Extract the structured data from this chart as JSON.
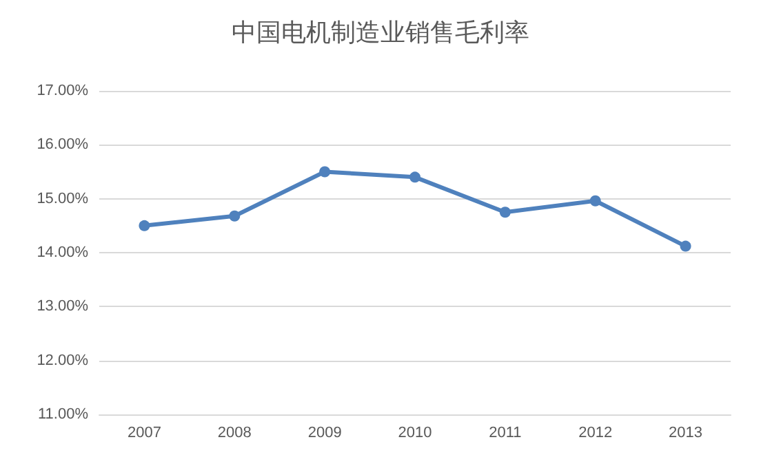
{
  "chart_data": {
    "type": "line",
    "title": "中国电机制造业销售毛利率",
    "categories": [
      "2007",
      "2008",
      "2009",
      "2010",
      "2011",
      "2012",
      "2013"
    ],
    "series": [
      {
        "color": "#4f81bd",
        "values": [
          14.5,
          14.68,
          15.5,
          15.4,
          14.75,
          14.96,
          14.12
        ]
      }
    ],
    "ylim": [
      11,
      17
    ],
    "yticks": [
      {
        "value": 11,
        "label": "11.00%"
      },
      {
        "value": 12,
        "label": "12.00%"
      },
      {
        "value": 13,
        "label": "13.00%"
      },
      {
        "value": 14,
        "label": "14.00%"
      },
      {
        "value": 15,
        "label": "15.00%"
      },
      {
        "value": 16,
        "label": "16.00%"
      },
      {
        "value": 17,
        "label": "17.00%"
      }
    ],
    "grid": "y",
    "marker": "circle",
    "line_style": "solid"
  }
}
